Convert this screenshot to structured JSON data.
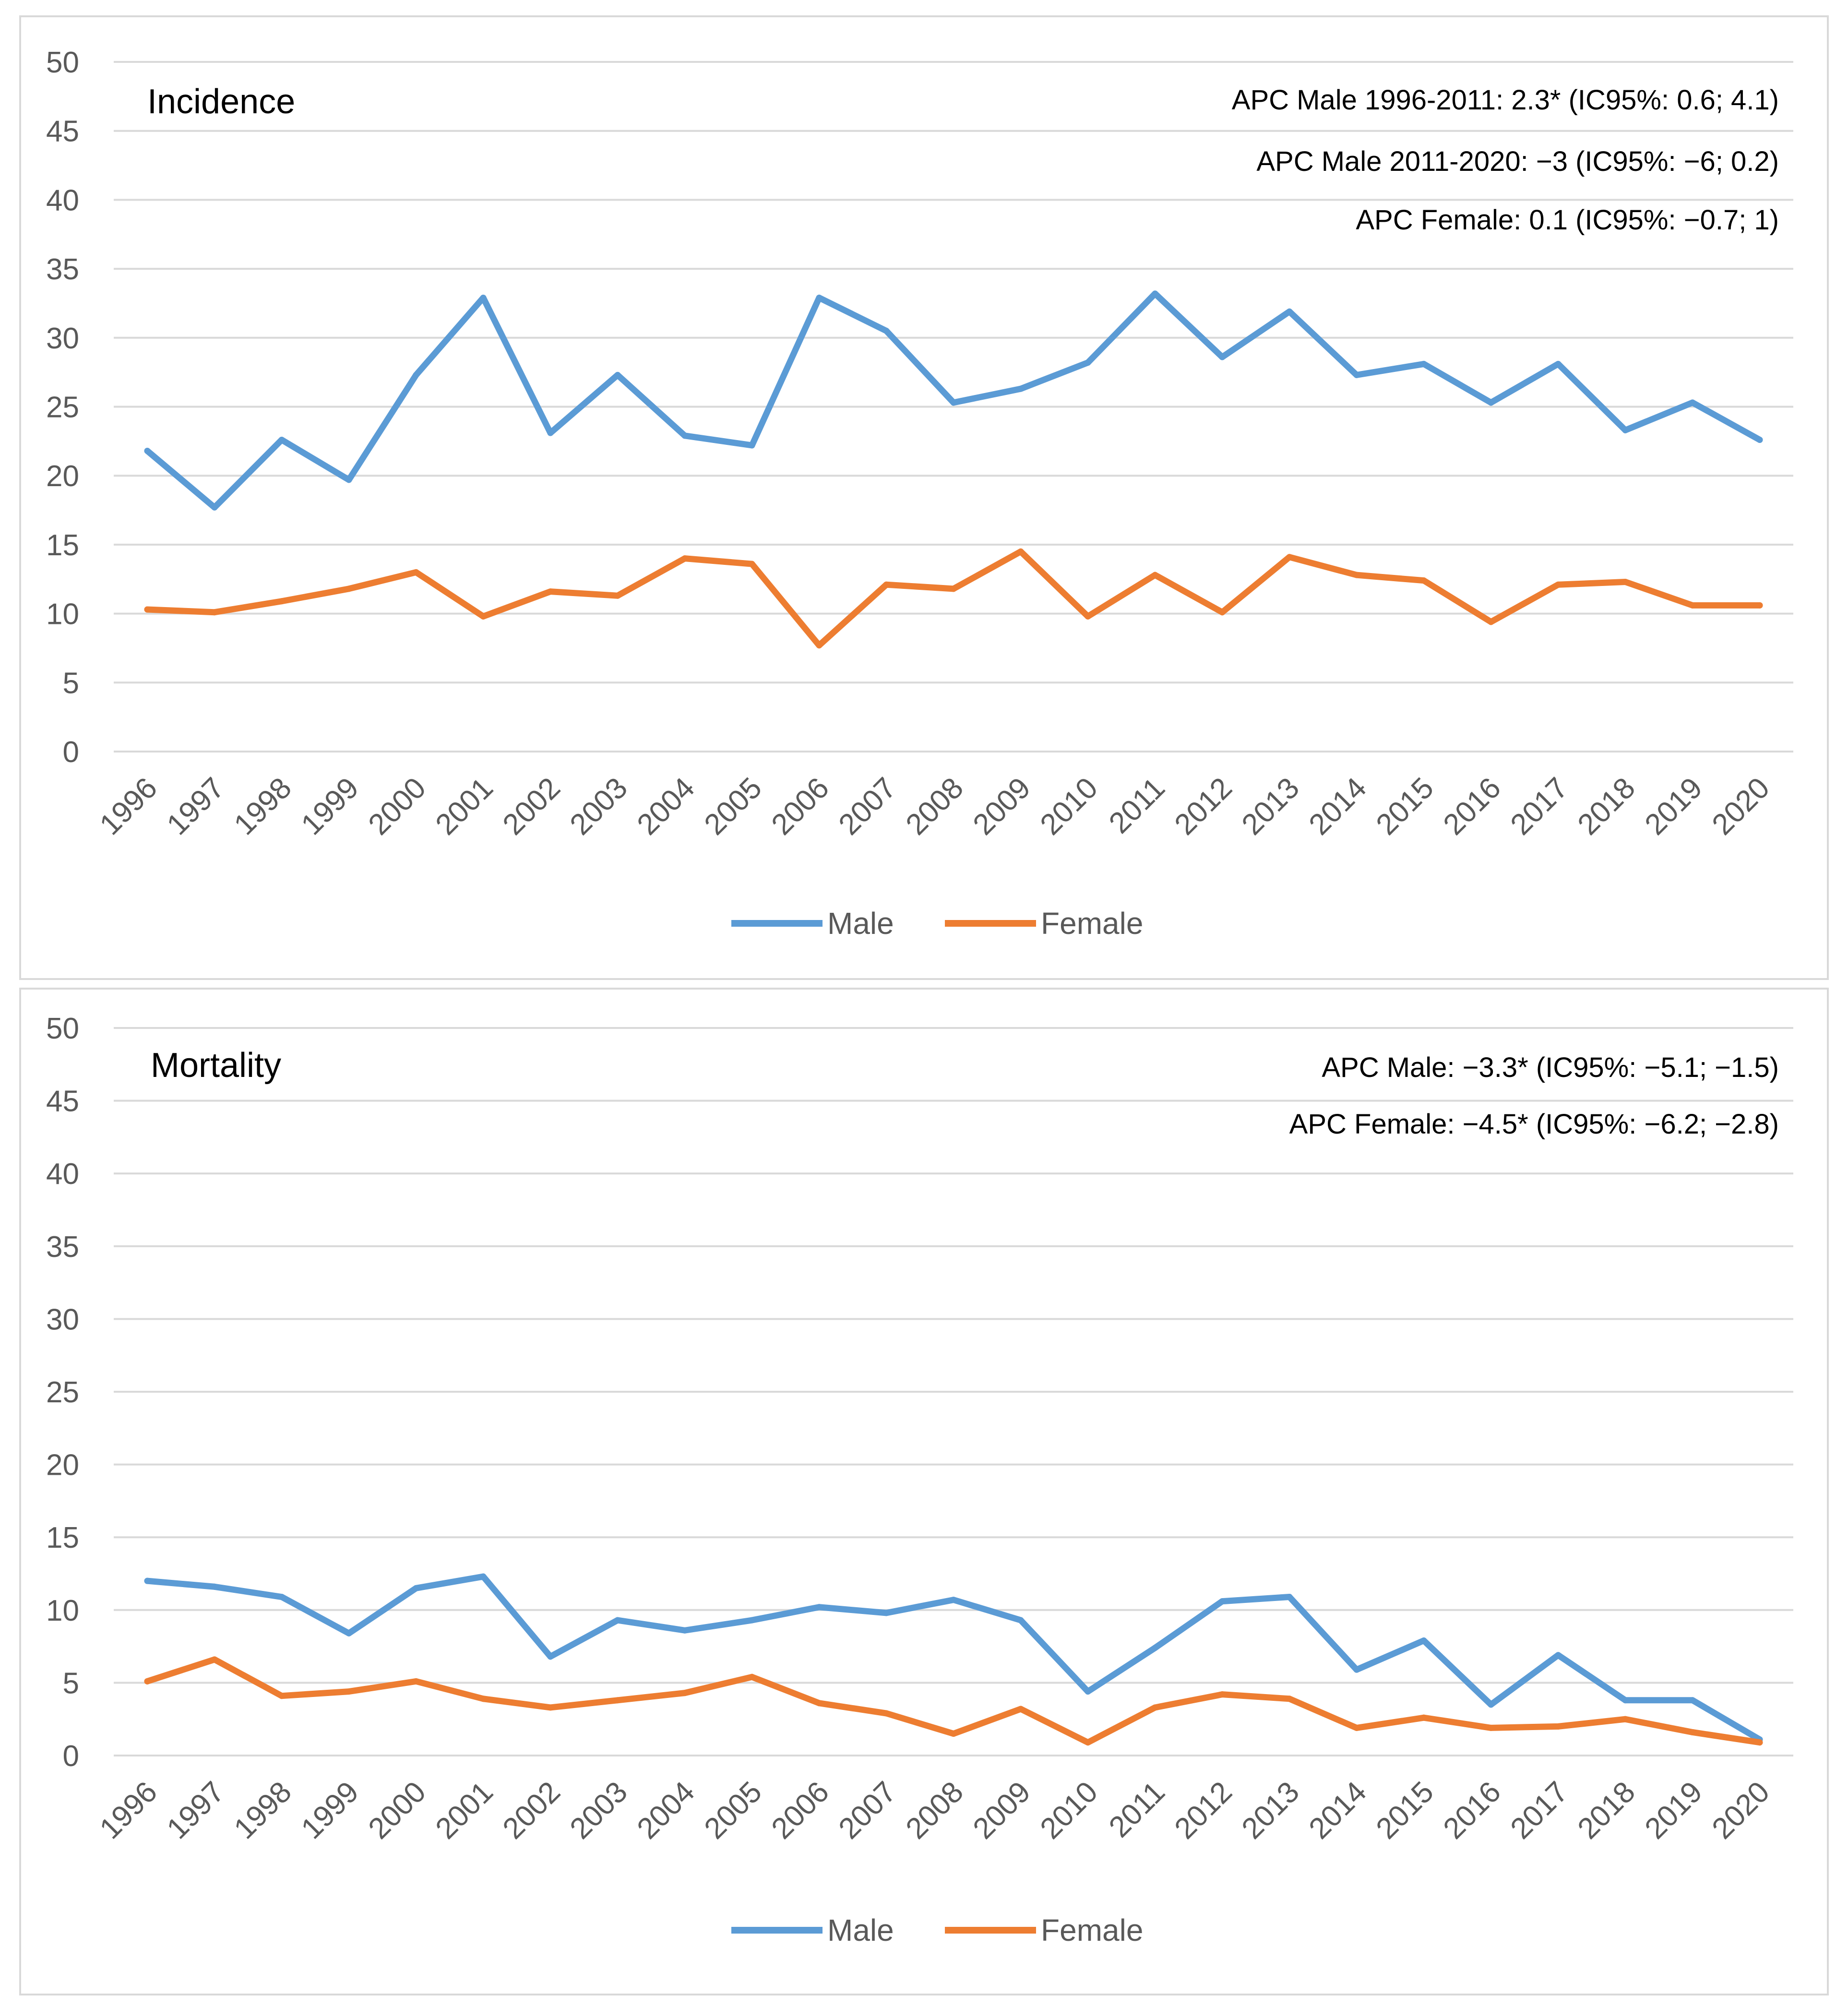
{
  "colors": {
    "male": "#5b9bd5",
    "female": "#ed7d31",
    "grid": "#d9d9d9",
    "tick_text": "#595959"
  },
  "chart_data": [
    {
      "type": "line",
      "title": "Incidence",
      "categories": [
        "1996",
        "1997",
        "1998",
        "1999",
        "2000",
        "2001",
        "2002",
        "2003",
        "2004",
        "2005",
        "2006",
        "2007",
        "2008",
        "2009",
        "2010",
        "2011",
        "2012",
        "2013",
        "2014",
        "2015",
        "2016",
        "2017",
        "2018",
        "2019",
        "2020"
      ],
      "ylim": [
        0,
        50
      ],
      "yticks": [
        "0",
        "5",
        "10",
        "15",
        "20",
        "25",
        "30",
        "35",
        "40",
        "45",
        "50"
      ],
      "series": [
        {
          "name": "Male",
          "color": "#5b9bd5",
          "values": [
            21.8,
            17.7,
            22.6,
            19.7,
            27.3,
            32.9,
            23.1,
            27.3,
            22.9,
            22.2,
            32.9,
            30.5,
            25.3,
            26.3,
            28.2,
            33.2,
            28.6,
            31.9,
            27.3,
            28.1,
            25.3,
            28.1,
            23.3,
            25.3,
            22.6
          ]
        },
        {
          "name": "Female",
          "color": "#ed7d31",
          "values": [
            10.3,
            10.1,
            10.9,
            11.8,
            13.0,
            9.8,
            11.6,
            11.3,
            14.0,
            13.6,
            7.7,
            12.1,
            11.8,
            14.5,
            9.8,
            12.8,
            10.1,
            14.1,
            12.8,
            12.4,
            9.4,
            12.1,
            12.3,
            10.6,
            10.6
          ]
        }
      ],
      "annotations": [
        "APC Male 1996-2011: 2.3* (IC95%: 0.6; 4.1)",
        "APC Male  2011-2020: −3 (IC95%: −6; 0.2)",
        "APC Female: 0.1 (IC95%: −0.7; 1)"
      ],
      "legend": [
        "Male",
        "Female"
      ],
      "legend_position": "bottom"
    },
    {
      "type": "line",
      "title": "Mortality",
      "categories": [
        "1996",
        "1997",
        "1998",
        "1999",
        "2000",
        "2001",
        "2002",
        "2003",
        "2004",
        "2005",
        "2006",
        "2007",
        "2008",
        "2009",
        "2010",
        "2011",
        "2012",
        "2013",
        "2014",
        "2015",
        "2016",
        "2017",
        "2018",
        "2019",
        "2020"
      ],
      "ylim": [
        0,
        50
      ],
      "yticks": [
        "0",
        "5",
        "10",
        "15",
        "20",
        "25",
        "30",
        "35",
        "40",
        "45",
        "50"
      ],
      "series": [
        {
          "name": "Male",
          "color": "#5b9bd5",
          "values": [
            12.0,
            11.6,
            10.9,
            8.4,
            11.5,
            12.3,
            6.8,
            9.3,
            8.6,
            9.3,
            10.2,
            9.8,
            10.7,
            9.3,
            4.4,
            7.4,
            10.6,
            10.9,
            5.9,
            7.9,
            3.5,
            6.9,
            3.8,
            3.8,
            1.1
          ]
        },
        {
          "name": "Female",
          "color": "#ed7d31",
          "values": [
            5.1,
            6.6,
            4.1,
            4.4,
            5.1,
            3.9,
            3.3,
            3.8,
            4.3,
            5.4,
            3.6,
            2.9,
            1.5,
            3.2,
            0.9,
            3.3,
            4.2,
            3.9,
            1.9,
            2.6,
            1.9,
            2.0,
            2.5,
            1.6,
            0.9
          ]
        }
      ],
      "annotations": [
        "APC Male: −3.3* (IC95%: −5.1; −1.5)",
        "APC Female: −4.5* (IC95%: −6.2; −2.8)"
      ],
      "legend": [
        "Male",
        "Female"
      ],
      "legend_position": "bottom"
    }
  ]
}
